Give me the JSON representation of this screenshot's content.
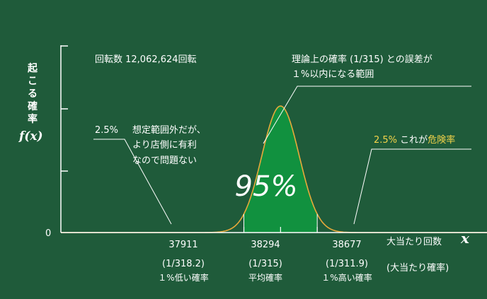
{
  "chart_data": {
    "type": "area",
    "distribution": "normal",
    "x_ticks": [
      {
        "value": 37911,
        "label": "37911",
        "prob": "(1/318.2)",
        "desc": "１%低い確率"
      },
      {
        "value": 38294,
        "label": "38294",
        "prob": "(1/315)",
        "desc": "平均確率"
      },
      {
        "value": 38677,
        "label": "38677",
        "prob": "(1/311.9)",
        "desc": "１%高い確率"
      }
    ],
    "xlim": [
      36000,
      40450
    ],
    "mean": 38294,
    "sd": 195.4,
    "shaded_range": [
      37911,
      38677
    ],
    "shaded_percent": "95%",
    "y_zero_label": "0",
    "ylabel_text": "起こる確率",
    "ylabel_fx": "f(x)",
    "xlabel_text": "大当たり回数",
    "xlabel_var": "x",
    "xlabel_sub": "(大当たり確率)",
    "colors": {
      "background": "#1f5b3a",
      "shaded": "#11913f",
      "curve": "#e8a93a",
      "axis": "#ffffff",
      "highlight": "#f5d44a"
    }
  },
  "annotations": {
    "spins": "回転数 12,062,624回転",
    "range_line1": "理論上の確率 (1/315) との誤差が",
    "range_line2": "１%以内になる範囲",
    "left_pct": "2.5%",
    "left_line1": "想定範囲外だが、",
    "left_line2": "より店側に有利",
    "left_line3": "なので問題ない",
    "right_pct": "2.5%",
    "right_text": "これが",
    "right_danger": "危険率"
  }
}
